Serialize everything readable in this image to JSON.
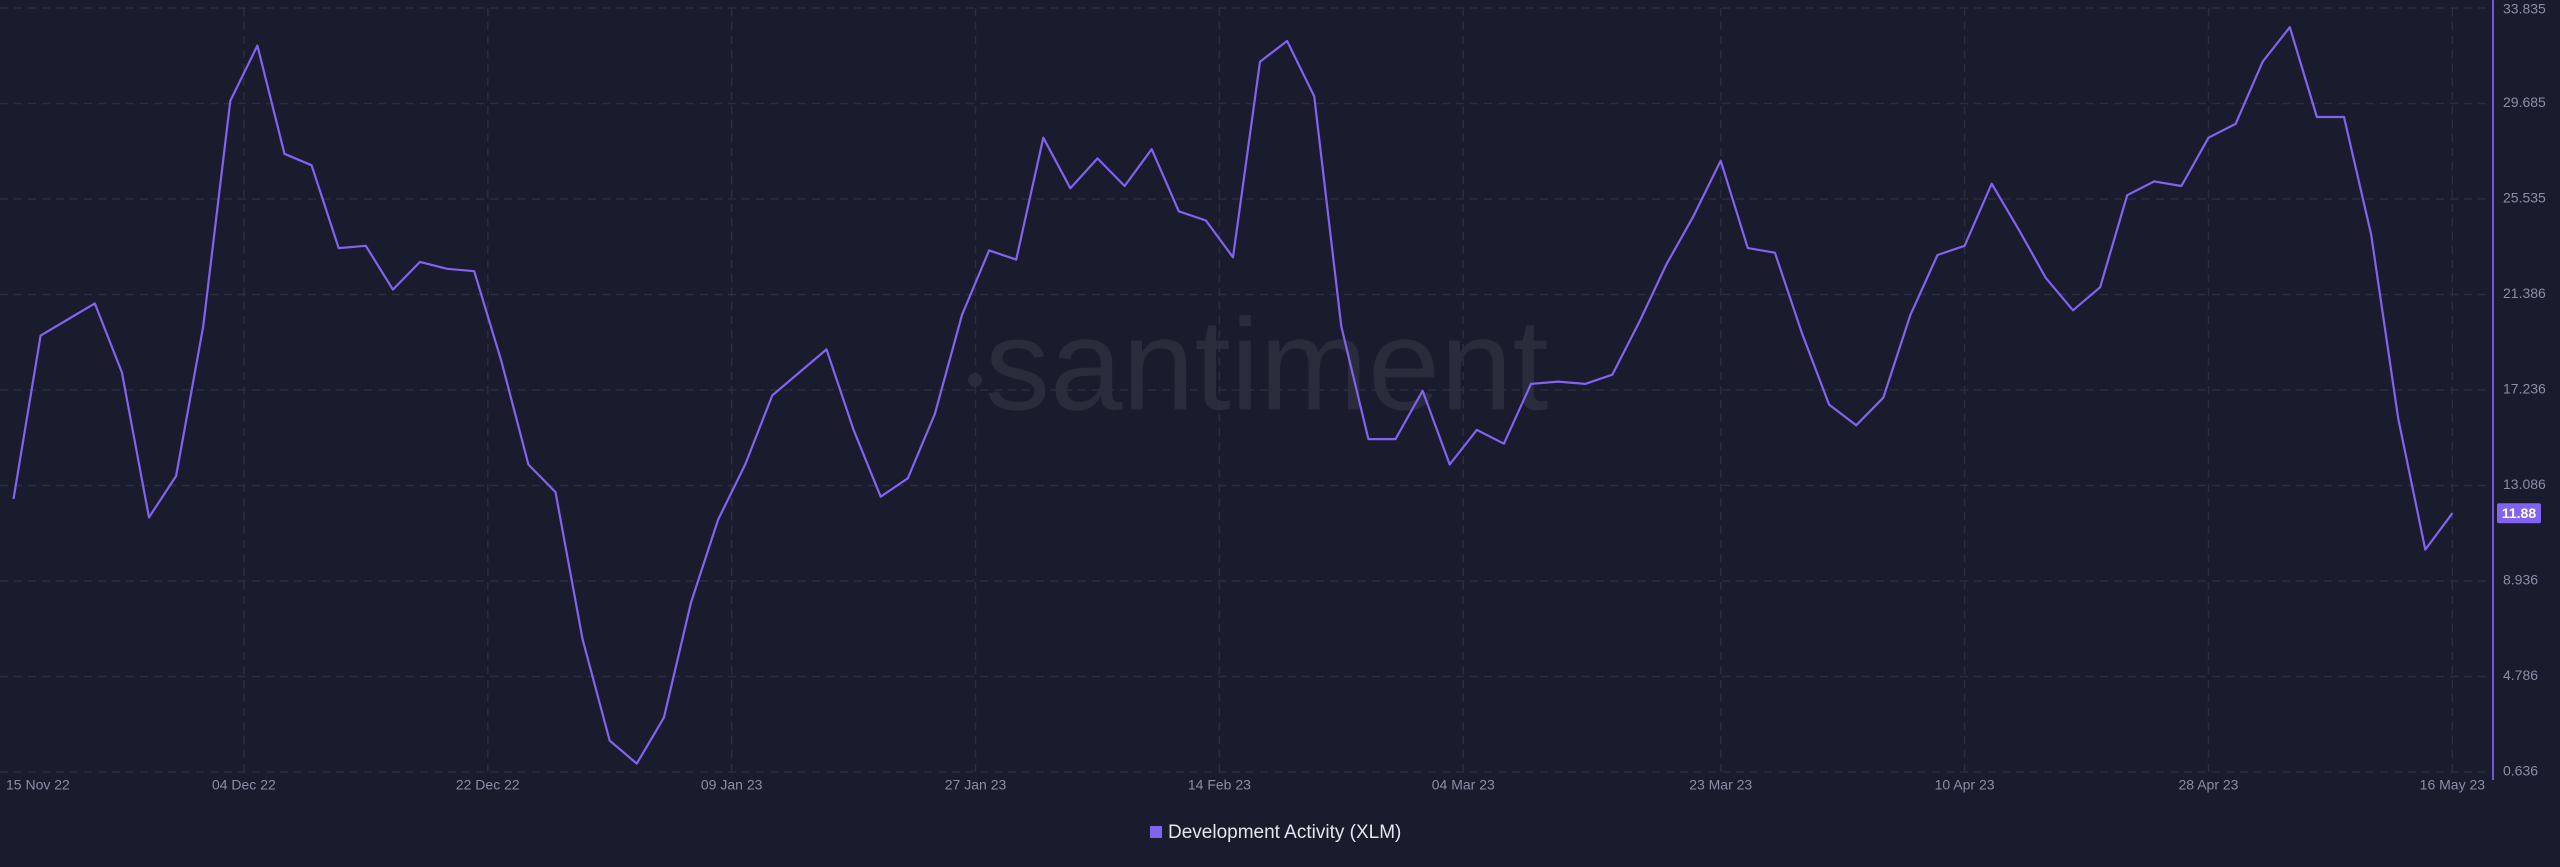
{
  "chart_data": {
    "type": "line",
    "watermark": "santiment",
    "x": [
      "2022-11-17",
      "2022-11-19",
      "2022-11-21",
      "2022-11-23",
      "2022-11-25",
      "2022-11-27",
      "2022-11-29",
      "2022-12-01",
      "2022-12-03",
      "2022-12-05",
      "2022-12-07",
      "2022-12-09",
      "2022-12-11",
      "2022-12-13",
      "2022-12-15",
      "2022-12-17",
      "2022-12-19",
      "2022-12-21",
      "2022-12-23",
      "2022-12-25",
      "2022-12-27",
      "2022-12-29",
      "2022-12-31",
      "2023-01-02",
      "2023-01-04",
      "2023-01-06",
      "2023-01-08",
      "2023-01-10",
      "2023-01-12",
      "2023-01-14",
      "2023-01-16",
      "2023-01-18",
      "2023-01-20",
      "2023-01-22",
      "2023-01-24",
      "2023-01-26",
      "2023-01-28",
      "2023-01-30",
      "2023-02-01",
      "2023-02-03",
      "2023-02-05",
      "2023-02-07",
      "2023-02-09",
      "2023-02-11",
      "2023-02-13",
      "2023-02-15",
      "2023-02-17",
      "2023-02-19",
      "2023-02-21",
      "2023-02-23",
      "2023-02-25",
      "2023-02-27",
      "2023-03-01",
      "2023-03-03",
      "2023-03-05",
      "2023-03-07",
      "2023-03-09",
      "2023-03-11",
      "2023-03-13",
      "2023-03-15",
      "2023-03-17",
      "2023-03-19",
      "2023-03-21",
      "2023-03-23",
      "2023-03-25",
      "2023-03-27",
      "2023-03-29",
      "2023-03-31",
      "2023-04-02",
      "2023-04-04",
      "2023-04-06",
      "2023-04-08",
      "2023-04-10",
      "2023-04-12",
      "2023-04-14",
      "2023-04-16",
      "2023-04-18",
      "2023-04-20",
      "2023-04-22",
      "2023-04-24",
      "2023-04-26",
      "2023-04-28",
      "2023-04-30",
      "2023-05-02",
      "2023-05-04",
      "2023-05-06",
      "2023-05-08",
      "2023-05-10",
      "2023-05-12",
      "2023-05-14",
      "2023-05-16"
    ],
    "series": [
      {
        "name": "Development Activity (XLM)",
        "color": "#8263f0",
        "values": [
          12.5,
          19.6,
          20.3,
          21,
          18,
          11.7,
          13.5,
          20,
          29.8,
          32.2,
          27.5,
          27,
          23.4,
          23.5,
          21.6,
          22.8,
          22.5,
          22.4,
          18.5,
          14,
          12.8,
          6.4,
          2,
          1.0,
          3,
          8,
          11.6,
          14,
          17,
          18,
          19,
          15.5,
          12.6,
          13.4,
          16.2,
          20.5,
          23.3,
          22.9,
          28.2,
          26,
          27.3,
          26.1,
          27.7,
          25,
          24.6,
          23,
          31.5,
          32.4,
          30,
          20,
          15.1,
          15.1,
          17.2,
          14,
          15.5,
          14.9,
          17.5,
          17.6,
          17.5,
          17.9,
          20.2,
          22.7,
          24.8,
          27.2,
          23.4,
          23.2,
          19.7,
          16.6,
          15.7,
          16.9,
          20.5,
          23.1,
          23.5,
          26.2,
          24.2,
          22.1,
          20.7,
          21.7,
          25.7,
          26.3,
          26.1,
          28.2,
          28.8,
          31.5,
          33,
          29.1,
          29.1,
          24,
          16,
          10.3,
          11.88
        ]
      }
    ],
    "xlim": [
      "2022-11-16",
      "2023-05-19"
    ],
    "xticks": [
      {
        "value": "2022-11-15",
        "label": "15 Nov 22"
      },
      {
        "value": "2022-12-04",
        "label": "04 Dec 22"
      },
      {
        "value": "2022-12-22",
        "label": "22 Dec 22"
      },
      {
        "value": "2023-01-09",
        "label": "09 Jan 23"
      },
      {
        "value": "2023-01-27",
        "label": "27 Jan 23"
      },
      {
        "value": "2023-02-14",
        "label": "14 Feb 23"
      },
      {
        "value": "2023-03-04",
        "label": "04 Mar 23"
      },
      {
        "value": "2023-03-23",
        "label": "23 Mar 23"
      },
      {
        "value": "2023-04-10",
        "label": "10 Apr 23"
      },
      {
        "value": "2023-04-28",
        "label": "28 Apr 23"
      },
      {
        "value": "2023-05-16",
        "label": "16 May 23"
      }
    ],
    "ylim": [
      0.636,
      33.835
    ],
    "yticks": [
      0.636,
      4.786,
      8.936,
      13.086,
      17.236,
      21.386,
      25.535,
      29.685,
      33.835
    ],
    "grid": true
  }
}
